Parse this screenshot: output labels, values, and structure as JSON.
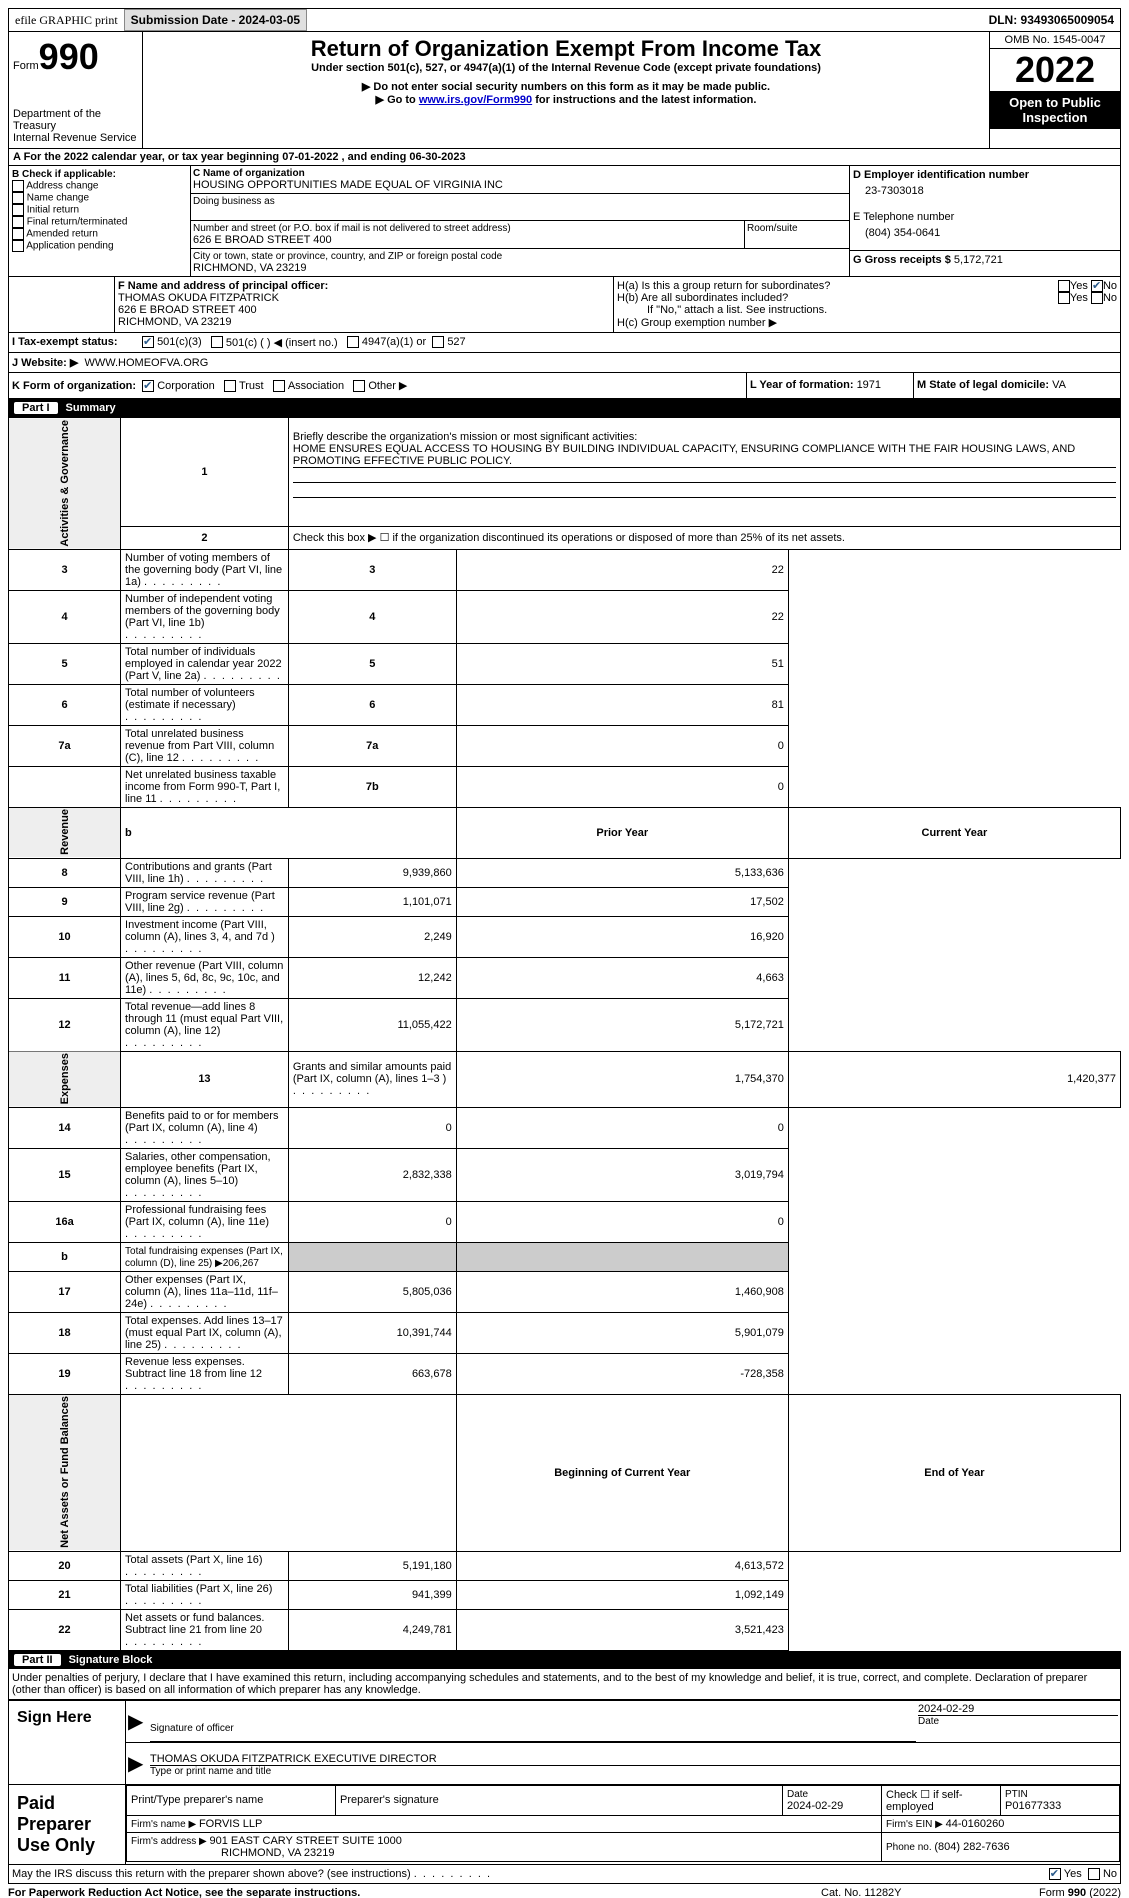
{
  "topbar": {
    "efile_label": "efile GRAPHIC print",
    "submission_label": "Submission Date - 2024-03-05",
    "dln_label": "DLN: 93493065009054"
  },
  "header": {
    "form_word": "Form",
    "form_num": "990",
    "dept": "Department of the Treasury",
    "irs": "Internal Revenue Service",
    "title": "Return of Organization Exempt From Income Tax",
    "subtitle": "Under section 501(c), 527, or 4947(a)(1) of the Internal Revenue Code (except private foundations)",
    "note1": "▶ Do not enter social security numbers on this form as it may be made public.",
    "note2_pre": "▶ Go to ",
    "note2_link": "www.irs.gov/Form990",
    "note2_post": " for instructions and the latest information.",
    "omb": "OMB No. 1545-0047",
    "year": "2022",
    "open": "Open to Public Inspection"
  },
  "line_a": {
    "pre": "A For the 2022 calendar year, or tax year beginning ",
    "begin": "07-01-2022",
    "mid": " , and ending ",
    "end": "06-30-2023"
  },
  "sec_b": {
    "label": "B Check if applicable:",
    "opts": [
      "Address change",
      "Name change",
      "Initial return",
      "Final return/terminated",
      "Amended return",
      "Application pending"
    ]
  },
  "sec_c": {
    "name_label": "C Name of organization",
    "name": "HOUSING OPPORTUNITIES MADE EQUAL OF VIRGINIA INC",
    "dba_label": "Doing business as",
    "street_label": "Number and street (or P.O. box if mail is not delivered to street address)",
    "room_label": "Room/suite",
    "street": "626 E BROAD STREET 400",
    "city_label": "City or town, state or province, country, and ZIP or foreign postal code",
    "city": "RICHMOND, VA  23219"
  },
  "sec_d": {
    "label": "D Employer identification number",
    "val": "23-7303018",
    "e_label": "E Telephone number",
    "e_val": "(804) 354-0641",
    "g_label": "G Gross receipts $ ",
    "g_val": "5,172,721"
  },
  "sec_f": {
    "label": "F Name and address of principal officer:",
    "name": "THOMAS OKUDA FITZPATRICK",
    "addr1": "626 E BROAD STREET 400",
    "addr2": "RICHMOND, VA  23219"
  },
  "sec_h": {
    "a_label": "H(a)  Is this a group return for subordinates?",
    "b_label": "H(b)  Are all subordinates included?",
    "b_note": "If \"No,\" attach a list. See instructions.",
    "c_label": "H(c)  Group exemption number ▶",
    "yes": "Yes",
    "no": "No"
  },
  "sec_i": {
    "label": "I    Tax-exempt status:",
    "o1": "501(c)(3)",
    "o2": "501(c) (  ) ◀ (insert no.)",
    "o3": "4947(a)(1) or",
    "o4": "527"
  },
  "sec_j": {
    "label": "J    Website: ▶",
    "val": "WWW.HOMEOFVA.ORG"
  },
  "sec_k": {
    "label": "K Form of organization:",
    "o1": "Corporation",
    "o2": "Trust",
    "o3": "Association",
    "o4": "Other ▶"
  },
  "sec_l": {
    "label": "L Year of formation: ",
    "val": "1971"
  },
  "sec_m": {
    "label": "M State of legal domicile: ",
    "val": "VA"
  },
  "part1": {
    "num": "Part I",
    "title": "Summary"
  },
  "p1": {
    "l1_label": "Briefly describe the organization's mission or most significant activities:",
    "l1_text": "HOME ENSURES EQUAL ACCESS TO HOUSING BY BUILDING INDIVIDUAL CAPACITY, ENSURING COMPLIANCE WITH THE FAIR HOUSING LAWS, AND PROMOTING EFFECTIVE PUBLIC POLICY.",
    "l2": "Check this box ▶ ☐  if the organization discontinued its operations or disposed of more than 25% of its net assets.",
    "rows_ag": [
      {
        "n": "3",
        "t": "Number of voting members of the governing body (Part VI, line 1a)",
        "b": "3",
        "v": "22"
      },
      {
        "n": "4",
        "t": "Number of independent voting members of the governing body (Part VI, line 1b)",
        "b": "4",
        "v": "22"
      },
      {
        "n": "5",
        "t": "Total number of individuals employed in calendar year 2022 (Part V, line 2a)",
        "b": "5",
        "v": "51"
      },
      {
        "n": "6",
        "t": "Total number of volunteers (estimate if necessary)",
        "b": "6",
        "v": "81"
      },
      {
        "n": "7a",
        "t": "Total unrelated business revenue from Part VIII, column (C), line 12",
        "b": "7a",
        "v": "0"
      },
      {
        "n": "",
        "t": "Net unrelated business taxable income from Form 990-T, Part I, line 11",
        "b": "7b",
        "v": "0"
      }
    ],
    "prior_hdr": "Prior Year",
    "curr_hdr": "Current Year",
    "rev_rows": [
      {
        "n": "8",
        "t": "Contributions and grants (Part VIII, line 1h)",
        "p": "9,939,860",
        "c": "5,133,636"
      },
      {
        "n": "9",
        "t": "Program service revenue (Part VIII, line 2g)",
        "p": "1,101,071",
        "c": "17,502"
      },
      {
        "n": "10",
        "t": "Investment income (Part VIII, column (A), lines 3, 4, and 7d )",
        "p": "2,249",
        "c": "16,920"
      },
      {
        "n": "11",
        "t": "Other revenue (Part VIII, column (A), lines 5, 6d, 8c, 9c, 10c, and 11e)",
        "p": "12,242",
        "c": "4,663"
      },
      {
        "n": "12",
        "t": "Total revenue—add lines 8 through 11 (must equal Part VIII, column (A), line 12)",
        "p": "11,055,422",
        "c": "5,172,721"
      }
    ],
    "exp_rows": [
      {
        "n": "13",
        "t": "Grants and similar amounts paid (Part IX, column (A), lines 1–3 )",
        "p": "1,754,370",
        "c": "1,420,377"
      },
      {
        "n": "14",
        "t": "Benefits paid to or for members (Part IX, column (A), line 4)",
        "p": "0",
        "c": "0"
      },
      {
        "n": "15",
        "t": "Salaries, other compensation, employee benefits (Part IX, column (A), lines 5–10)",
        "p": "2,832,338",
        "c": "3,019,794"
      },
      {
        "n": "16a",
        "t": "Professional fundraising fees (Part IX, column (A), line 11e)",
        "p": "0",
        "c": "0"
      },
      {
        "n": "b",
        "t": "Total fundraising expenses (Part IX, column (D), line 25) ▶206,267",
        "p": "",
        "c": "",
        "shade": true
      },
      {
        "n": "17",
        "t": "Other expenses (Part IX, column (A), lines 11a–11d, 11f–24e)",
        "p": "5,805,036",
        "c": "1,460,908"
      },
      {
        "n": "18",
        "t": "Total expenses. Add lines 13–17 (must equal Part IX, column (A), line 25)",
        "p": "10,391,744",
        "c": "5,901,079"
      },
      {
        "n": "19",
        "t": "Revenue less expenses. Subtract line 18 from line 12",
        "p": "663,678",
        "c": "-728,358"
      }
    ],
    "na_hdr1": "Beginning of Current Year",
    "na_hdr2": "End of Year",
    "na_rows": [
      {
        "n": "20",
        "t": "Total assets (Part X, line 16)",
        "p": "5,191,180",
        "c": "4,613,572"
      },
      {
        "n": "21",
        "t": "Total liabilities (Part X, line 26)",
        "p": "941,399",
        "c": "1,092,149"
      },
      {
        "n": "22",
        "t": "Net assets or fund balances. Subtract line 21 from line 20",
        "p": "4,249,781",
        "c": "3,521,423"
      }
    ],
    "vt_ag": "Activities & Governance",
    "vt_rev": "Revenue",
    "vt_exp": "Expenses",
    "vt_na": "Net Assets or Fund Balances"
  },
  "part2": {
    "num": "Part II",
    "title": "Signature Block"
  },
  "p2": {
    "decl": "Under penalties of perjury, I declare that I have examined this return, including accompanying schedules and statements, and to the best of my knowledge and belief, it is true, correct, and complete. Declaration of preparer (other than officer) is based on all information of which preparer has any knowledge.",
    "sign_here": "Sign Here",
    "sig_officer": "Signature of officer",
    "sig_date": "2024-02-29",
    "date_lbl": "Date",
    "officer_name": "THOMAS OKUDA FITZPATRICK  EXECUTIVE DIRECTOR",
    "officer_type": "Type or print name and title",
    "paid": "Paid Preparer Use Only",
    "prep_name_lbl": "Print/Type preparer's name",
    "prep_sig_lbl": "Preparer's signature",
    "prep_date_lbl": "Date",
    "prep_date": "2024-02-29",
    "check_self": "Check ☐ if self-employed",
    "ptin_lbl": "PTIN",
    "ptin": "P01677333",
    "firm_name_lbl": "Firm's name    ▶ ",
    "firm_name": "FORVIS LLP",
    "firm_ein_lbl": "Firm's EIN ▶ ",
    "firm_ein": "44-0160260",
    "firm_addr_lbl": "Firm's address ▶ ",
    "firm_addr": "901 EAST CARY STREET SUITE 1000",
    "firm_addr2": "RICHMOND, VA  23219",
    "phone_lbl": "Phone no. ",
    "phone": "(804) 282-7636",
    "may_irs": "May the IRS discuss this return with the preparer shown above? (see instructions)",
    "yes": "Yes",
    "no": "No"
  },
  "footer": {
    "left": "For Paperwork Reduction Act Notice, see the separate instructions.",
    "mid": "Cat. No. 11282Y",
    "right": "Form 990 (2022)"
  }
}
